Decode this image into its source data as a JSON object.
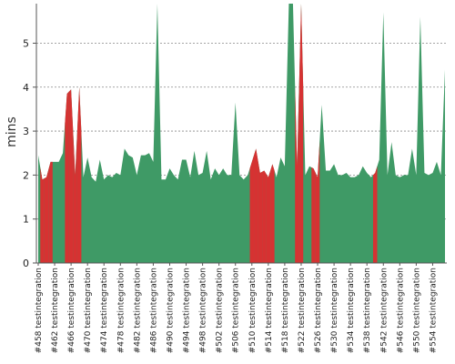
{
  "chart_data": {
    "type": "area",
    "ylabel": "mins",
    "ylim": [
      0,
      5.9
    ],
    "yticks": [
      0,
      1,
      2,
      3,
      4,
      5
    ],
    "grid": true,
    "colors": {
      "pass": "#3f9a66",
      "fail": "#d63232",
      "axis": "#555555",
      "grid": "#888888"
    },
    "categories": [
      "#458 testintegration",
      "#462 testintegration",
      "#466 testintegration",
      "#470 testintegration",
      "#474 testintegration",
      "#478 testintegration",
      "#482 testintegration",
      "#486 testintegration",
      "#490 testintegration",
      "#494 testintegration",
      "#498 testintegration",
      "#502 testintegration",
      "#506 testintegration",
      "#510 testintegration",
      "#514 testintegration",
      "#518 testintegration",
      "#522 testintegration",
      "#526 testintegration",
      "#530 testintegration",
      "#534 testintegration",
      "#538 testintegration",
      "#542 testintegration",
      "#546 testintegration",
      "#550 testintegration",
      "#554 testintegration"
    ],
    "x": [
      458,
      459,
      460,
      461,
      462,
      463,
      464,
      465,
      466,
      467,
      468,
      469,
      470,
      471,
      472,
      473,
      474,
      475,
      476,
      477,
      478,
      479,
      480,
      481,
      482,
      483,
      484,
      485,
      486,
      487,
      488,
      489,
      490,
      491,
      492,
      493,
      494,
      495,
      496,
      497,
      498,
      499,
      500,
      501,
      502,
      503,
      504,
      505,
      506,
      507,
      508,
      509,
      510,
      511,
      512,
      513,
      514,
      515,
      516,
      517,
      518,
      519,
      520,
      521,
      522,
      523,
      524,
      525,
      526,
      527,
      528,
      529,
      530,
      531,
      532,
      533,
      534,
      535,
      536,
      537,
      538,
      539,
      540,
      541,
      542,
      543,
      544,
      545,
      546,
      547,
      548,
      549,
      550,
      551,
      552,
      553,
      554,
      555,
      556,
      557
    ],
    "values": [
      2.45,
      1.9,
      1.95,
      2.3,
      2.3,
      2.3,
      2.5,
      3.85,
      3.95,
      2.0,
      4.0,
      1.95,
      2.4,
      1.95,
      1.85,
      2.35,
      1.9,
      2.0,
      1.95,
      2.05,
      2.0,
      2.6,
      2.45,
      2.4,
      2.0,
      2.45,
      2.45,
      2.5,
      2.3,
      5.9,
      1.9,
      1.9,
      2.15,
      2.0,
      1.9,
      2.35,
      2.35,
      1.95,
      2.55,
      2.0,
      2.05,
      2.55,
      1.9,
      2.15,
      2.0,
      2.15,
      2.0,
      2.0,
      3.65,
      2.0,
      1.9,
      2.0,
      2.3,
      2.6,
      2.05,
      2.1,
      1.95,
      2.25,
      1.95,
      2.4,
      2.2,
      5.9,
      5.9,
      2.2,
      5.9,
      2.0,
      2.2,
      2.15,
      1.95,
      3.6,
      2.1,
      2.1,
      2.25,
      2.0,
      2.0,
      2.05,
      1.95,
      1.95,
      2.0,
      2.2,
      2.05,
      1.95,
      2.05,
      2.35,
      5.7,
      2.0,
      2.75,
      2.0,
      1.95,
      2.0,
      2.0,
      2.6,
      2.0,
      5.6,
      2.05,
      2.0,
      2.05,
      2.3,
      2.0,
      4.4
    ],
    "failed_builds": [
      459,
      460,
      461,
      465,
      466,
      467,
      468,
      510,
      511,
      512,
      513,
      514,
      515,
      521,
      522,
      525,
      526,
      540
    ]
  }
}
